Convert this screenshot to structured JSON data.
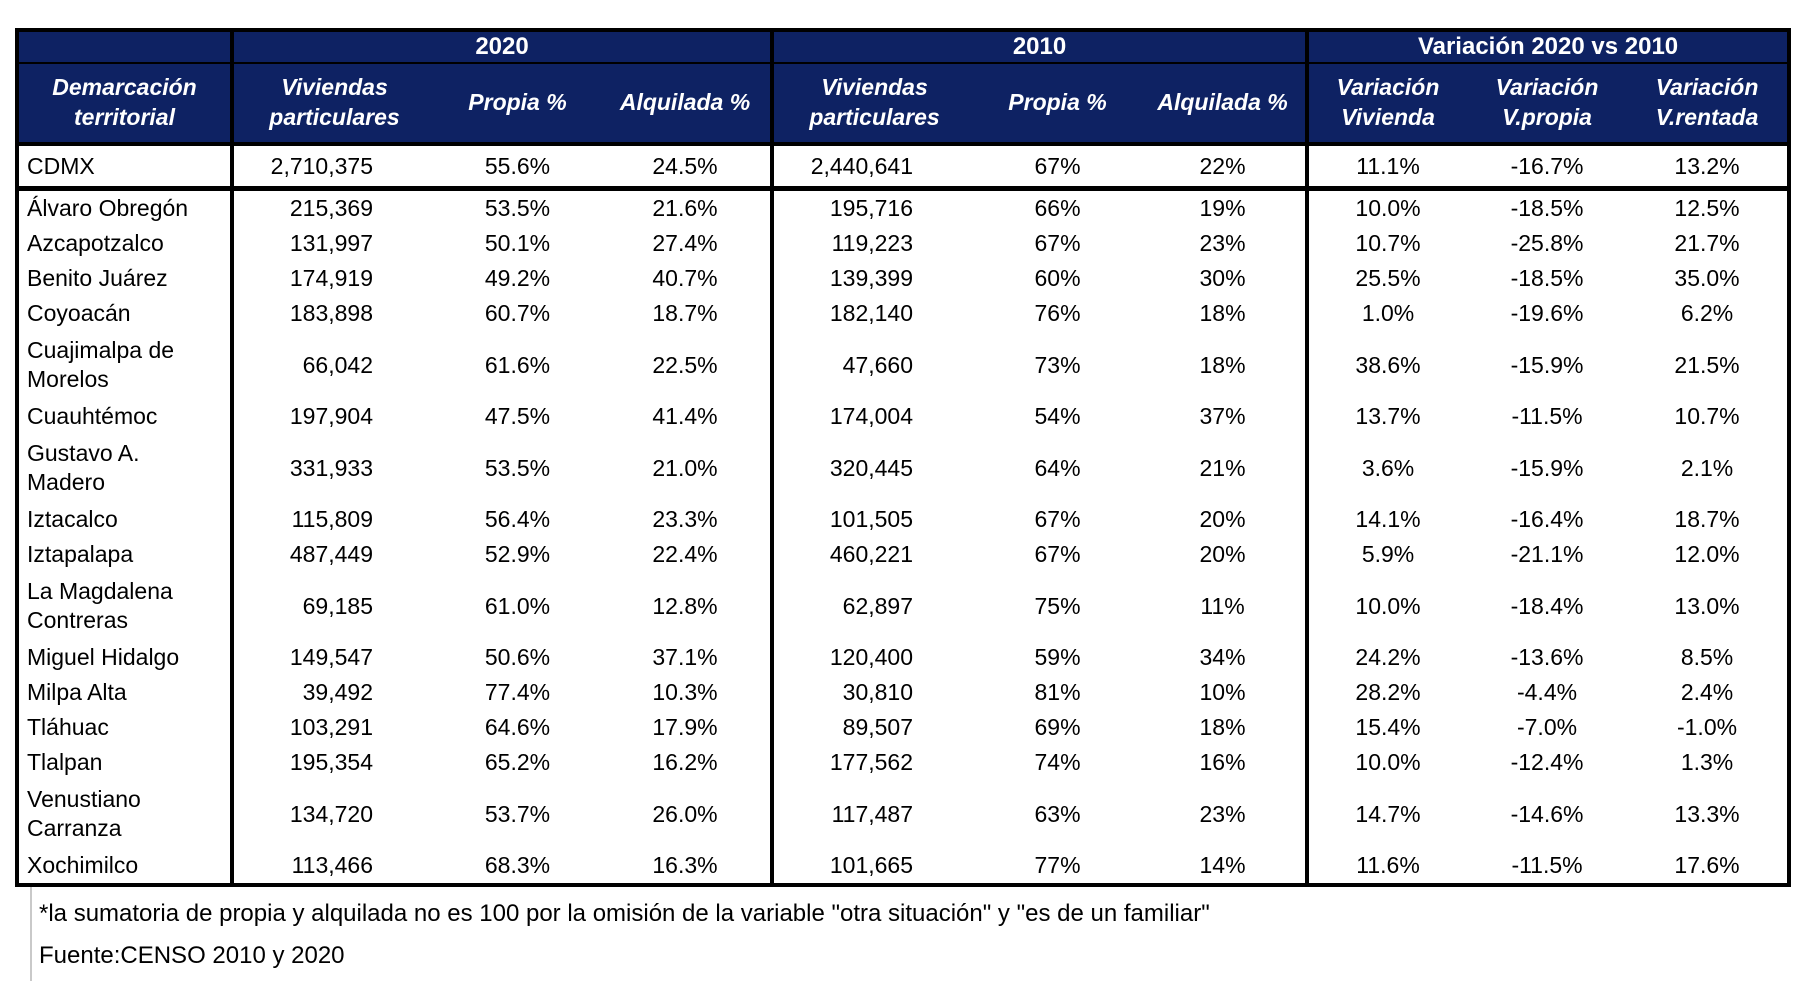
{
  "table": {
    "group_headers": {
      "y2020": "2020",
      "y2010": "2010",
      "variacion": "Variación 2020 vs 2010"
    },
    "column_headers": {
      "territory": "Demarcación\nterritorial",
      "viviendas": "Viviendas\nparticulares",
      "propia": "Propia %",
      "alquilada": "Alquilada %",
      "var_vivienda": "Variación\nVivienda",
      "var_propia": "Variación\nV.propia",
      "var_rentada": "Variación\nV.rentada"
    },
    "total_row": {
      "name": "CDMX",
      "v2020": "2,710,375",
      "p2020": "55.6%",
      "a2020": "24.5%",
      "v2010": "2,440,641",
      "p2010": "67%",
      "a2010": "22%",
      "var_v": "11.1%",
      "var_p": "-16.7%",
      "var_r": "13.2%"
    },
    "rows": [
      {
        "name": "Álvaro Obregón",
        "v2020": "215,369",
        "p2020": "53.5%",
        "a2020": "21.6%",
        "v2010": "195,716",
        "p2010": "66%",
        "a2010": "19%",
        "var_v": "10.0%",
        "var_p": "-18.5%",
        "var_r": "12.5%"
      },
      {
        "name": "Azcapotzalco",
        "v2020": "131,997",
        "p2020": "50.1%",
        "a2020": "27.4%",
        "v2010": "119,223",
        "p2010": "67%",
        "a2010": "23%",
        "var_v": "10.7%",
        "var_p": "-25.8%",
        "var_r": "21.7%"
      },
      {
        "name": "Benito Juárez",
        "v2020": "174,919",
        "p2020": "49.2%",
        "a2020": "40.7%",
        "v2010": "139,399",
        "p2010": "60%",
        "a2010": "30%",
        "var_v": "25.5%",
        "var_p": "-18.5%",
        "var_r": "35.0%"
      },
      {
        "name": "Coyoacán",
        "v2020": "183,898",
        "p2020": "60.7%",
        "a2020": "18.7%",
        "v2010": "182,140",
        "p2010": "76%",
        "a2010": "18%",
        "var_v": "1.0%",
        "var_p": "-19.6%",
        "var_r": "6.2%"
      },
      {
        "name": "Cuajimalpa de\nMorelos",
        "v2020": "66,042",
        "p2020": "61.6%",
        "a2020": "22.5%",
        "v2010": "47,660",
        "p2010": "73%",
        "a2010": "18%",
        "var_v": "38.6%",
        "var_p": "-15.9%",
        "var_r": "21.5%"
      },
      {
        "name": "Cuauhtémoc",
        "v2020": "197,904",
        "p2020": "47.5%",
        "a2020": "41.4%",
        "v2010": "174,004",
        "p2010": "54%",
        "a2010": "37%",
        "var_v": "13.7%",
        "var_p": "-11.5%",
        "var_r": "10.7%"
      },
      {
        "name": "Gustavo A.\nMadero",
        "v2020": "331,933",
        "p2020": "53.5%",
        "a2020": "21.0%",
        "v2010": "320,445",
        "p2010": "64%",
        "a2010": "21%",
        "var_v": "3.6%",
        "var_p": "-15.9%",
        "var_r": "2.1%"
      },
      {
        "name": "Iztacalco",
        "v2020": "115,809",
        "p2020": "56.4%",
        "a2020": "23.3%",
        "v2010": "101,505",
        "p2010": "67%",
        "a2010": "20%",
        "var_v": "14.1%",
        "var_p": "-16.4%",
        "var_r": "18.7%"
      },
      {
        "name": "Iztapalapa",
        "v2020": "487,449",
        "p2020": "52.9%",
        "a2020": "22.4%",
        "v2010": "460,221",
        "p2010": "67%",
        "a2010": "20%",
        "var_v": "5.9%",
        "var_p": "-21.1%",
        "var_r": "12.0%"
      },
      {
        "name": "La Magdalena\nContreras",
        "v2020": "69,185",
        "p2020": "61.0%",
        "a2020": "12.8%",
        "v2010": "62,897",
        "p2010": "75%",
        "a2010": "11%",
        "var_v": "10.0%",
        "var_p": "-18.4%",
        "var_r": "13.0%"
      },
      {
        "name": "Miguel Hidalgo",
        "v2020": "149,547",
        "p2020": "50.6%",
        "a2020": "37.1%",
        "v2010": "120,400",
        "p2010": "59%",
        "a2010": "34%",
        "var_v": "24.2%",
        "var_p": "-13.6%",
        "var_r": "8.5%"
      },
      {
        "name": "Milpa Alta",
        "v2020": "39,492",
        "p2020": "77.4%",
        "a2020": "10.3%",
        "v2010": "30,810",
        "p2010": "81%",
        "a2010": "10%",
        "var_v": "28.2%",
        "var_p": "-4.4%",
        "var_r": "2.4%"
      },
      {
        "name": "Tláhuac",
        "v2020": "103,291",
        "p2020": "64.6%",
        "a2020": "17.9%",
        "v2010": "89,507",
        "p2010": "69%",
        "a2010": "18%",
        "var_v": "15.4%",
        "var_p": "-7.0%",
        "var_r": "-1.0%"
      },
      {
        "name": "Tlalpan",
        "v2020": "195,354",
        "p2020": "65.2%",
        "a2020": "16.2%",
        "v2010": "177,562",
        "p2010": "74%",
        "a2010": "16%",
        "var_v": "10.0%",
        "var_p": "-12.4%",
        "var_r": "1.3%"
      },
      {
        "name": "Venustiano\nCarranza",
        "v2020": "134,720",
        "p2020": "53.7%",
        "a2020": "26.0%",
        "v2010": "117,487",
        "p2010": "63%",
        "a2010": "23%",
        "var_v": "14.7%",
        "var_p": "-14.6%",
        "var_r": "13.3%"
      },
      {
        "name": "Xochimilco",
        "v2020": "113,466",
        "p2020": "68.3%",
        "a2020": "16.3%",
        "v2010": "101,665",
        "p2010": "77%",
        "a2010": "14%",
        "var_v": "11.6%",
        "var_p": "-11.5%",
        "var_r": "17.6%"
      }
    ]
  },
  "footnotes": {
    "note": "*la sumatoria de propia y alquilada no es 100 por la omisión de la variable  \"otra situación\" y \"es de un familiar\"",
    "source": "Fuente:CENSO 2010 y 2020"
  },
  "colors": {
    "header_bg": "#0e2263",
    "header_text": "#ffffff",
    "border": "#000000"
  }
}
